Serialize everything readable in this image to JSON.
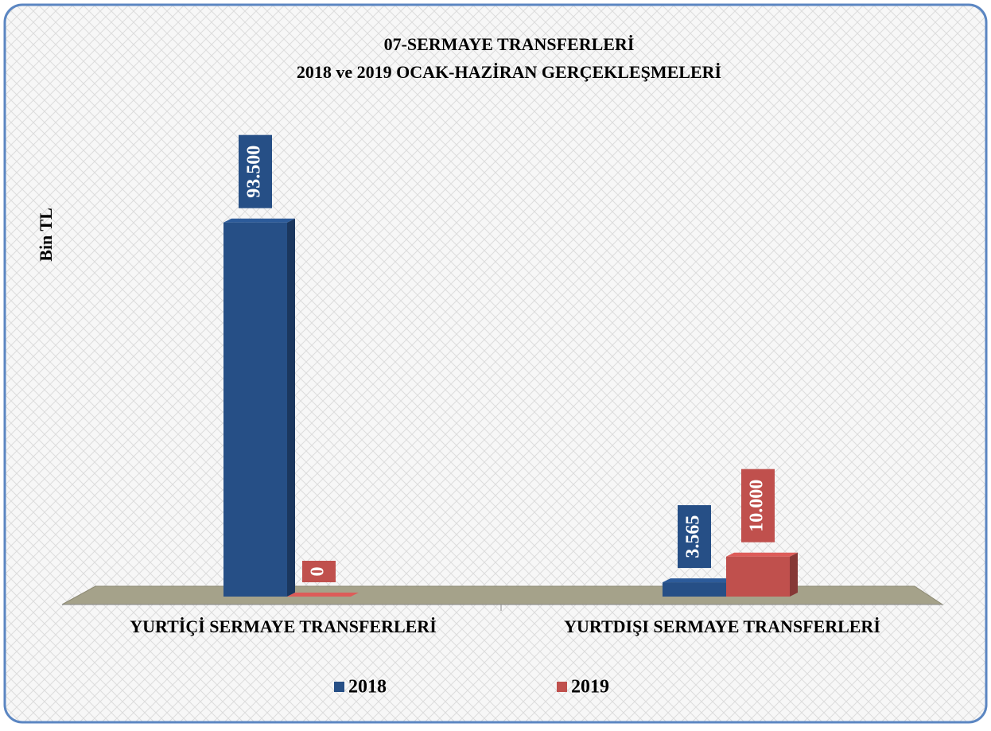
{
  "chart_data": {
    "type": "bar",
    "title": "07-SERMAYE TRANSFERLERİ",
    "subtitle": "2018 ve 2019 OCAK-HAZİRAN GERÇEKLEŞMELERİ",
    "y_label": "Bin TL",
    "categories": [
      "YURTİÇİ SERMAYE TRANSFERLERİ",
      "YURTDIŞI SERMAYE TRANSFERLERİ"
    ],
    "series": [
      {
        "name": "2018",
        "color": "#264f86",
        "values": [
          93500,
          3565
        ],
        "value_labels": [
          "93.500",
          "3.565"
        ]
      },
      {
        "name": "2019",
        "color": "#c0504d",
        "values": [
          0,
          10000
        ],
        "value_labels": [
          "0",
          "10.000"
        ]
      }
    ],
    "ylim": [
      0,
      100000
    ],
    "legend": "bottom"
  }
}
